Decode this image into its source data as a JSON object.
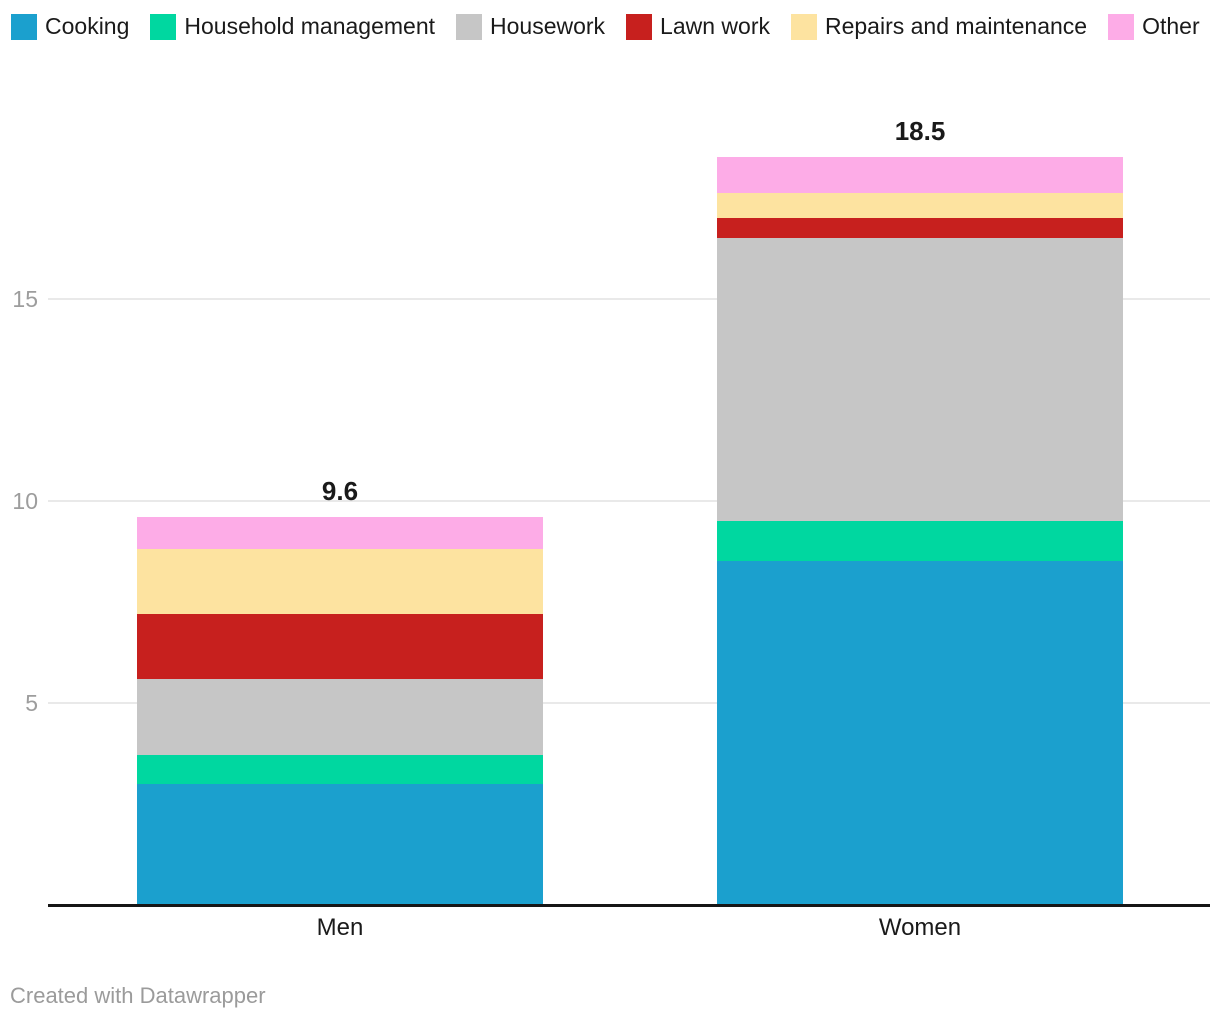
{
  "chart_data": {
    "type": "bar",
    "stacked": true,
    "orientation": "vertical",
    "categories": [
      "Men",
      "Women"
    ],
    "series": [
      {
        "name": "Cooking",
        "color": "#1ba0ce",
        "values": [
          3.0,
          8.5
        ]
      },
      {
        "name": "Household management",
        "color": "#00d7a0",
        "values": [
          0.7,
          1.0
        ]
      },
      {
        "name": "Housework",
        "color": "#c6c6c6",
        "values": [
          1.9,
          7.0
        ]
      },
      {
        "name": "Lawn work",
        "color": "#c7201e",
        "values": [
          1.6,
          0.5
        ]
      },
      {
        "name": "Repairs and maintenance",
        "color": "#fde3a0",
        "values": [
          1.6,
          0.6
        ]
      },
      {
        "name": "Other",
        "color": "#fdace7",
        "values": [
          0.8,
          0.9
        ]
      }
    ],
    "total_labels": [
      "9.6",
      "18.5"
    ],
    "yticks": [
      5,
      10,
      15
    ],
    "ylim": [
      0,
      18.5
    ],
    "grid": true,
    "gridline_color": "#e9e9e9",
    "axis_line_color": "#161616",
    "tick_label_color": "#9d9d9d",
    "legend_position": "top"
  },
  "footer": {
    "credit": "Created with Datawrapper"
  }
}
